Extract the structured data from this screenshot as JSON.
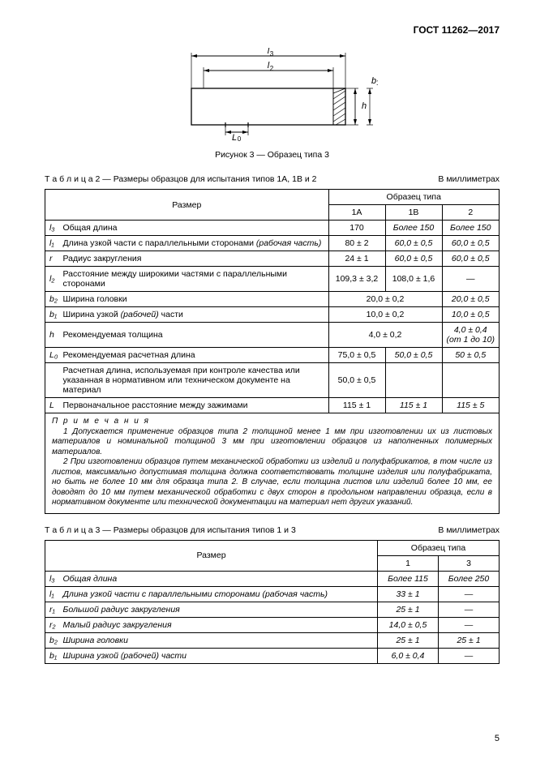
{
  "header": "ГОСТ 11262—2017",
  "figure": {
    "caption": "Рисунок 3 — Образец типа 3",
    "labels": {
      "l3": "l₃",
      "l2": "l₂",
      "L0": "L₀",
      "h": "h",
      "b1": "b₁"
    }
  },
  "table2": {
    "caption_prefix": "Т а б л и ц а",
    "caption_num": "  2 — Размеры образцов для испытания типов 1А, 1В и 2",
    "units": "В миллиметрах",
    "head_dim": "Размер",
    "head_spec": "Образец типа",
    "cols": [
      "1А",
      "1В",
      "2"
    ],
    "rows": [
      {
        "sym": "l₃",
        "desc": "Общая длина",
        "v": [
          "170",
          "Более 150",
          "Более 150"
        ],
        "italic23": true
      },
      {
        "sym": "l₁",
        "desc": "Длина узкой части с параллельными сторонами (рабочая часть)",
        "desc_html": "Длина узкой части с параллельными сторонами <i>(рабочая часть)</i>",
        "v": [
          "80 ± 2",
          "60,0 ± 0,5",
          "60,0 ± 0,5"
        ],
        "italic23": true
      },
      {
        "sym": "r",
        "desc": "Радиус закругления",
        "v": [
          "24 ± 1",
          "60,0 ± 0,5",
          "60,0 ± 0,5"
        ],
        "italic23": true
      },
      {
        "sym": "l₂",
        "desc": "Расстояние между широкими частями с параллельными сторонами",
        "v": [
          "109,3 ± 3,2",
          "108,0 ± 1,6",
          "—"
        ]
      },
      {
        "sym": "b₂",
        "desc": "Ширина головки",
        "span12": "20,0 ± 0,2",
        "v3": "20,0 ± 0,5",
        "v3_italic": true
      },
      {
        "sym": "b₁",
        "desc": "Ширина узкой (рабочей) части",
        "desc_html": "Ширина узкой <i>(рабочей)</i> части",
        "span12": "10,0 ± 0,2",
        "v3": "10,0 ± 0,5",
        "v3_italic": true
      },
      {
        "sym": "h",
        "desc": "Рекомендуемая толщина",
        "span12": "4,0 ± 0,2",
        "v3": "4,0 ± 0,4\n(от 1 до 10)",
        "v3_italic": true
      },
      {
        "sym": "L₀",
        "desc": "Рекомендуемая расчетная длина",
        "v": [
          "75,0 ± 0,5",
          "50,0 ± 0,5",
          "50 ± 0,5"
        ],
        "italic23": true
      },
      {
        "sym": "",
        "desc": "Расчетная длина, используемая при контроле качества или указанная в нормативном или техническом документе на материал",
        "v": [
          "50,0 ± 0,5",
          "",
          ""
        ]
      },
      {
        "sym": "L",
        "desc": "Первоначальное расстояние между зажимами",
        "v": [
          "115 ± 1",
          "115 ± 1",
          "115 ± 5"
        ],
        "italic23": true
      }
    ],
    "notes_title": "П р и м е ч а н и я",
    "notes": [
      "1 Допускается применение образцов типа 2 толщиной менее 1 мм при изготовлении их из листовых материалов и номинальной толщиной 3 мм при изготовлении образцов из наполненных полимерных материалов.",
      "2 При изготовлении образцов путем механической обработки из изделий и полуфабрикатов, в том числе из листов, максимально допустимая толщина должна соответствовать толщине изделия или полуфабриката, но быть не более 10 мм для образца типа 2. В случае, если толщина листов  или изделий более 10 мм, ее доводят до 10 мм путем механической обработки с двух сторон в продольном направлении образца, если в нормативном документе или технической документации на материал нет других указаний."
    ]
  },
  "table3": {
    "caption_prefix": "Т а б л и ц а",
    "caption_num": "  3 — Размеры образцов для испытания типов 1 и 3",
    "units": "В миллиметрах",
    "head_dim": "Размер",
    "head_spec": "Образец типа",
    "cols": [
      "1",
      "3"
    ],
    "rows": [
      {
        "sym": "l₃",
        "desc": "Общая длина",
        "v": [
          "Более 115",
          "Более 250"
        ]
      },
      {
        "sym": "l₁",
        "desc": "Длина узкой части с параллельными сторонами (рабочая часть)",
        "v": [
          "33 ± 1",
          "—"
        ]
      },
      {
        "sym": "r₁",
        "desc": "Большой радиус закругления",
        "v": [
          "25 ± 1",
          "—"
        ]
      },
      {
        "sym": "r₂",
        "desc": "Малый радиус закругления",
        "v": [
          "14,0 ± 0,5",
          "—"
        ]
      },
      {
        "sym": "b₂",
        "desc": "Ширина головки",
        "v": [
          "25 ± 1",
          "25 ± 1"
        ]
      },
      {
        "sym": "b₁",
        "desc": "Ширина узкой (рабочей) части",
        "desc_html": "Ширина узкой <i>(рабочей)</i> части",
        "v": [
          "6,0 ± 0,4",
          "—"
        ]
      }
    ]
  },
  "page_number": "5",
  "colors": {
    "text": "#000000",
    "line": "#000000",
    "hatch": "#000000",
    "bg": "#ffffff"
  }
}
